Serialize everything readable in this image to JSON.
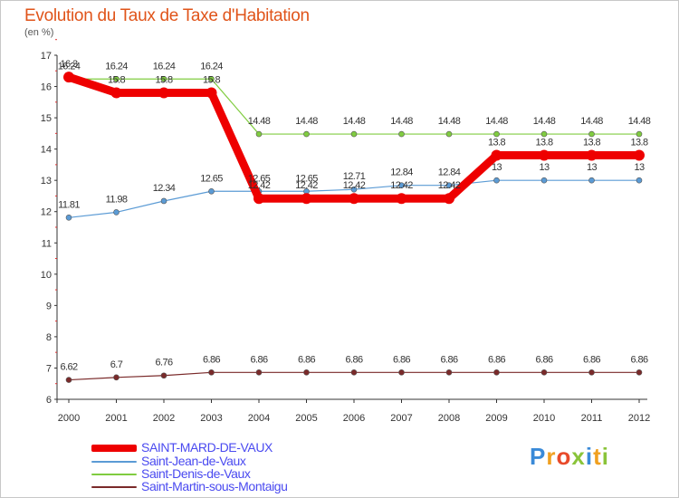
{
  "header": {
    "title": "Evolution du Taux de Taxe d'Habitation",
    "subtitle": "(en %)"
  },
  "chart_data": {
    "type": "line",
    "x": [
      2000,
      2001,
      2002,
      2003,
      2004,
      2005,
      2006,
      2007,
      2008,
      2009,
      2010,
      2011,
      2012
    ],
    "ylim": [
      6,
      17
    ],
    "yticks": [
      6,
      7,
      8,
      9,
      10,
      11,
      12,
      13,
      14,
      15,
      16,
      17
    ],
    "series": [
      {
        "name": "SAINT-MARD-DE-VAUX",
        "color": "#ee0000",
        "values": [
          16.3,
          15.8,
          15.8,
          15.8,
          12.42,
          12.42,
          12.42,
          12.42,
          12.42,
          13.8,
          13.8,
          13.8,
          13.8
        ],
        "labels": [
          "16.3",
          "15.8",
          "15.8",
          "15.8",
          "12.42",
          "12.42",
          "12.42",
          "12.42",
          "12.42",
          "13.8",
          "13.8",
          "13.8",
          "13.8"
        ]
      },
      {
        "name": "Saint-Jean-de-Vaux",
        "color": "#5b9bd5",
        "values": [
          11.81,
          11.98,
          12.34,
          12.65,
          12.65,
          12.65,
          12.71,
          12.84,
          12.84,
          13,
          13,
          13,
          13
        ],
        "labels": [
          "11.81",
          "11.98",
          "12.34",
          "12.65",
          "12.65",
          "12.65",
          "12.71",
          "12.84",
          "12.84",
          "13",
          "13",
          "13",
          "13"
        ]
      },
      {
        "name": "Saint-Denis-de-Vaux",
        "color": "#80cc40",
        "values": [
          16.24,
          16.24,
          16.24,
          16.24,
          14.48,
          14.48,
          14.48,
          14.48,
          14.48,
          14.48,
          14.48,
          14.48,
          14.48
        ],
        "labels": [
          "16.24",
          "16.24",
          "16.24",
          "16.24",
          "14.48",
          "14.48",
          "14.48",
          "14.48",
          "14.48",
          "14.48",
          "14.48",
          "14.48",
          "14.48"
        ]
      },
      {
        "name": "Saint-Martin-sous-Montaigu",
        "color": "#7a2a2a",
        "values": [
          6.62,
          6.7,
          6.76,
          6.86,
          6.86,
          6.86,
          6.86,
          6.86,
          6.86,
          6.86,
          6.86,
          6.86,
          6.86
        ],
        "labels": [
          "6.62",
          "6.7",
          "6.76",
          "6.86",
          "6.86",
          "6.86",
          "6.86",
          "6.86",
          "6.86",
          "6.86",
          "6.86",
          "6.86",
          "6.86"
        ]
      }
    ],
    "grid": false,
    "legend": "bottom-left"
  },
  "logo": {
    "text": "Proxiti"
  }
}
